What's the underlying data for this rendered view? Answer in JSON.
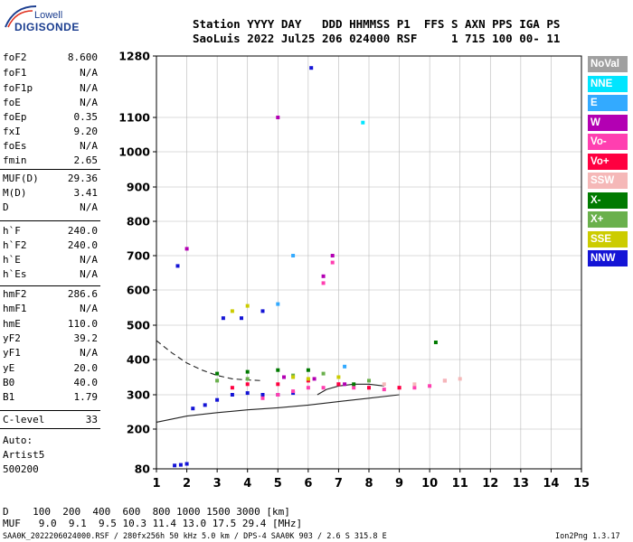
{
  "logo": {
    "line1": "Lowell",
    "line2": "DIGISONDE"
  },
  "header": {
    "line1": "Station YYYY DAY   DDD HHMMSS P1  FFS S AXN PPS IGA PS",
    "line2": "SaoLuis 2022 Jul25 206 024000 RSF     1 715 100 00- 11"
  },
  "params": [
    {
      "name": "foF2",
      "value": "8.600"
    },
    {
      "name": "foF1",
      "value": "N/A"
    },
    {
      "name": "foF1p",
      "value": "N/A"
    },
    {
      "name": "foE",
      "value": "N/A"
    },
    {
      "name": "foEp",
      "value": "0.35"
    },
    {
      "name": "fxI",
      "value": "9.20"
    },
    {
      "name": "foEs",
      "value": "N/A"
    },
    {
      "name": "fmin",
      "value": "2.65"
    },
    {
      "name": "MUF(D)",
      "value": "29.36"
    },
    {
      "name": "M(D)",
      "value": "3.41"
    },
    {
      "name": "D",
      "value": "N/A"
    },
    {
      "name": "h`F",
      "value": "240.0"
    },
    {
      "name": "h`F2",
      "value": "240.0"
    },
    {
      "name": "h`E",
      "value": "N/A"
    },
    {
      "name": "h`Es",
      "value": "N/A"
    },
    {
      "name": "hmF2",
      "value": "286.6"
    },
    {
      "name": "hmF1",
      "value": "N/A"
    },
    {
      "name": "hmE",
      "value": "110.0"
    },
    {
      "name": "yF2",
      "value": "39.2"
    },
    {
      "name": "yF1",
      "value": "N/A"
    },
    {
      "name": "yE",
      "value": "20.0"
    },
    {
      "name": "B0",
      "value": "40.0"
    },
    {
      "name": "B1",
      "value": "1.79"
    },
    {
      "name": "C-level",
      "value": "33"
    }
  ],
  "autoscale": {
    "line1": "Auto:",
    "line2": "Artist5",
    "line3": "500200"
  },
  "footer": {
    "distance_row": "D    100  200  400  600  800 1000 1500 3000 [km]",
    "muf_row": "MUF   9.0  9.1  9.5 10.3 11.4 13.0 17.5 29.4 [MHz]",
    "file_info": "SAA0K_2022206024000.RSF / 280fx256h 50 kHz 5.0 km / DPS-4 SAA0K 903 / 2.6 S 315.8 E",
    "version": "Ion2Png 1.3.17"
  },
  "legend": [
    {
      "label": "NoVal",
      "color": "#a0a0a0"
    },
    {
      "label": "NNE",
      "color": "#00e5ff"
    },
    {
      "label": "E",
      "color": "#33aaff"
    },
    {
      "label": "W",
      "color": "#b300b3"
    },
    {
      "label": "Vo-",
      "color": "#ff3fb0"
    },
    {
      "label": "Vo+",
      "color": "#ff0040"
    },
    {
      "label": "SSW",
      "color": "#f5b8b8"
    },
    {
      "label": "X-",
      "color": "#007a00"
    },
    {
      "label": "X+",
      "color": "#6ab04c"
    },
    {
      "label": "SSE",
      "color": "#cccc00"
    },
    {
      "label": "NNW",
      "color": "#1414d6"
    }
  ],
  "chart_data": {
    "type": "scatter",
    "x_ticks": [
      "1",
      "2",
      "3",
      "4",
      "5",
      "6",
      "7",
      "8",
      "9",
      "10",
      "11",
      "12",
      "13",
      "14",
      "15"
    ],
    "y_ticks": [
      "80",
      "200",
      "300",
      "400",
      "500",
      "600",
      "700",
      "800",
      "900",
      "1000",
      "1100",
      "1280"
    ],
    "xlim": [
      1,
      15
    ],
    "ylim": [
      80,
      1280
    ],
    "grid": true,
    "legend_position": "right",
    "series": [
      {
        "name": "NNW",
        "color": "#1414d6",
        "points": [
          [
            1.6,
            90
          ],
          [
            1.8,
            92
          ],
          [
            2.0,
            95
          ],
          [
            2.2,
            260
          ],
          [
            2.6,
            270
          ],
          [
            3.0,
            285
          ],
          [
            3.5,
            300
          ],
          [
            4.0,
            305
          ],
          [
            4.5,
            300
          ],
          [
            5.0,
            300
          ],
          [
            5.5,
            305
          ],
          [
            3.2,
            520
          ],
          [
            3.8,
            520
          ],
          [
            4.5,
            540
          ],
          [
            6.1,
            1245
          ],
          [
            1.7,
            670
          ]
        ]
      },
      {
        "name": "Vo-",
        "color": "#ff3fb0",
        "points": [
          [
            4.5,
            290
          ],
          [
            5.0,
            300
          ],
          [
            5.5,
            310
          ],
          [
            6.0,
            320
          ],
          [
            6.5,
            320
          ],
          [
            7.0,
            330
          ],
          [
            7.5,
            320
          ],
          [
            8.0,
            320
          ],
          [
            8.5,
            315
          ],
          [
            9.0,
            320
          ],
          [
            9.5,
            320
          ],
          [
            10.0,
            325
          ],
          [
            10.5,
            340
          ],
          [
            6.5,
            620
          ],
          [
            6.8,
            680
          ]
        ]
      },
      {
        "name": "Vo+",
        "color": "#ff0040",
        "points": [
          [
            3.5,
            320
          ],
          [
            4.0,
            330
          ],
          [
            5.0,
            330
          ],
          [
            6.0,
            340
          ],
          [
            7.0,
            330
          ],
          [
            8.0,
            320
          ],
          [
            9.0,
            320
          ]
        ]
      },
      {
        "name": "W",
        "color": "#b300b3",
        "points": [
          [
            2.0,
            720
          ],
          [
            5.0,
            1100
          ],
          [
            6.5,
            640
          ],
          [
            6.8,
            700
          ],
          [
            5.2,
            350
          ],
          [
            6.2,
            345
          ],
          [
            7.2,
            330
          ]
        ]
      },
      {
        "name": "X-",
        "color": "#007a00",
        "points": [
          [
            3.0,
            360
          ],
          [
            4.0,
            365
          ],
          [
            5.0,
            370
          ],
          [
            6.0,
            370
          ],
          [
            7.5,
            330
          ],
          [
            10.2,
            450
          ]
        ]
      },
      {
        "name": "X+",
        "color": "#6ab04c",
        "points": [
          [
            3.0,
            340
          ],
          [
            4.0,
            345
          ],
          [
            5.5,
            355
          ],
          [
            6.5,
            360
          ],
          [
            8.0,
            340
          ]
        ]
      },
      {
        "name": "SSE",
        "color": "#cccc00",
        "points": [
          [
            3.5,
            540
          ],
          [
            4.0,
            555
          ],
          [
            5.5,
            350
          ],
          [
            6.0,
            345
          ],
          [
            7.0,
            350
          ]
        ]
      },
      {
        "name": "SSW",
        "color": "#f5b8b8",
        "points": [
          [
            8.5,
            330
          ],
          [
            9.5,
            330
          ],
          [
            10.5,
            340
          ],
          [
            11.0,
            345
          ]
        ]
      },
      {
        "name": "E",
        "color": "#33aaff",
        "points": [
          [
            5.0,
            560
          ],
          [
            5.5,
            700
          ],
          [
            7.2,
            380
          ]
        ]
      },
      {
        "name": "NNE",
        "color": "#00e5ff",
        "points": [
          [
            7.8,
            1085
          ]
        ]
      }
    ],
    "curves": [
      {
        "style": "dashed",
        "points": [
          [
            1,
            455
          ],
          [
            1.5,
            420
          ],
          [
            2,
            390
          ],
          [
            2.5,
            370
          ],
          [
            3,
            355
          ],
          [
            3.5,
            345
          ],
          [
            4,
            342
          ],
          [
            4.5,
            340
          ]
        ]
      },
      {
        "style": "solid",
        "points": [
          [
            1,
            220
          ],
          [
            2,
            238
          ],
          [
            3,
            248
          ],
          [
            4,
            256
          ],
          [
            5,
            262
          ],
          [
            6,
            270
          ],
          [
            7,
            280
          ],
          [
            8,
            290
          ],
          [
            9,
            300
          ]
        ]
      },
      {
        "style": "solid",
        "points": [
          [
            6.3,
            300
          ],
          [
            6.6,
            315
          ],
          [
            7,
            325
          ],
          [
            7.5,
            330
          ],
          [
            8,
            330
          ],
          [
            8.5,
            325
          ]
        ]
      }
    ]
  }
}
